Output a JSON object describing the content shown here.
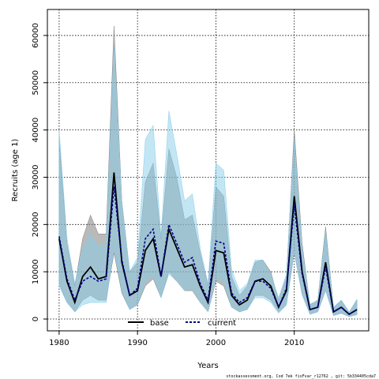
{
  "chart_data": {
    "type": "line",
    "xlabel": "Years",
    "ylabel": "Recruits (age 1)",
    "xlim": [
      1978.5,
      2019.5
    ],
    "ylim": [
      -2500,
      65500
    ],
    "x_ticks": [
      1980,
      1990,
      2000,
      2010
    ],
    "y_ticks": [
      0,
      10000,
      20000,
      30000,
      40000,
      50000,
      60000
    ],
    "grid": true,
    "legend_position": "bottom-center",
    "x": [
      1980,
      1981,
      1982,
      1983,
      1984,
      1985,
      1986,
      1987,
      1988,
      1989,
      1990,
      1991,
      1992,
      1993,
      1994,
      1995,
      1996,
      1997,
      1998,
      1999,
      2000,
      2001,
      2002,
      2003,
      2004,
      2005,
      2006,
      2007,
      2008,
      2009,
      2010,
      2011,
      2012,
      2013,
      2014,
      2015,
      2016,
      2017,
      2018
    ],
    "series": [
      {
        "name": "base",
        "color": "#000000",
        "line": "solid",
        "band_color": "#808080",
        "values": [
          17000,
          8000,
          3500,
          9000,
          11000,
          8500,
          9000,
          31000,
          12000,
          5000,
          6000,
          14500,
          17000,
          9000,
          19000,
          15000,
          11000,
          11500,
          7000,
          3500,
          14500,
          14000,
          5000,
          3000,
          4000,
          8000,
          8500,
          7000,
          2500,
          6000,
          26000,
          10000,
          2000,
          2500,
          12000,
          1500,
          2500,
          1000,
          2000
        ],
        "lower": [
          7500,
          3500,
          1500,
          4000,
          5000,
          4000,
          4000,
          14000,
          5500,
          2000,
          3000,
          7000,
          8500,
          4500,
          10000,
          8000,
          6000,
          6000,
          3500,
          1500,
          8000,
          7000,
          2500,
          1500,
          2000,
          5000,
          5000,
          4000,
          1500,
          3000,
          14000,
          5500,
          1000,
          1500,
          6000,
          800,
          1200,
          500,
          1000
        ],
        "upper": [
          38000,
          16000,
          7000,
          17000,
          22000,
          18000,
          18000,
          62000,
          25000,
          10000,
          12000,
          29000,
          33000,
          17000,
          36000,
          30000,
          21000,
          22000,
          14000,
          7000,
          28000,
          26000,
          9000,
          5000,
          7000,
          12000,
          12500,
          10000,
          4000,
          9000,
          40000,
          16000,
          3000,
          4000,
          19500,
          2500,
          4000,
          1500,
          4000
        ]
      },
      {
        "name": "current",
        "color": "#00008b",
        "line": "dashed",
        "band_color": "#87ceeb",
        "values": [
          17500,
          8500,
          4000,
          8000,
          9000,
          8000,
          8500,
          28000,
          12500,
          5000,
          6500,
          17000,
          19000,
          9000,
          20000,
          16000,
          12000,
          13000,
          7500,
          4000,
          16500,
          16000,
          5500,
          3500,
          4500,
          8000,
          8000,
          6500,
          2500,
          6500,
          24000,
          9500,
          2000,
          2500,
          11000,
          1500,
          2500,
          1000,
          2000
        ],
        "lower": [
          7000,
          3500,
          1500,
          3000,
          3500,
          3500,
          3500,
          15000,
          6000,
          2000,
          3000,
          8000,
          9000,
          4500,
          9500,
          8000,
          6000,
          6500,
          3500,
          1500,
          8500,
          8000,
          2500,
          1500,
          2000,
          4500,
          4500,
          3500,
          1200,
          3000,
          14000,
          5000,
          1000,
          1500,
          6000,
          700,
          1200,
          500,
          900
        ],
        "upper": [
          40000,
          17000,
          7500,
          15000,
          18000,
          15500,
          16000,
          58000,
          25000,
          10000,
          13000,
          38000,
          41000,
          17500,
          44000,
          35000,
          25000,
          26500,
          15000,
          7500,
          33000,
          31500,
          10500,
          6000,
          7500,
          12500,
          12500,
          9500,
          4500,
          9500,
          38000,
          15000,
          3200,
          3800,
          18500,
          2500,
          4000,
          1500,
          4200
        ]
      }
    ]
  },
  "footer_text": "stockassessment.org, Cod  7ek  fixFvar_r12762 , git: 5b334405cda7"
}
